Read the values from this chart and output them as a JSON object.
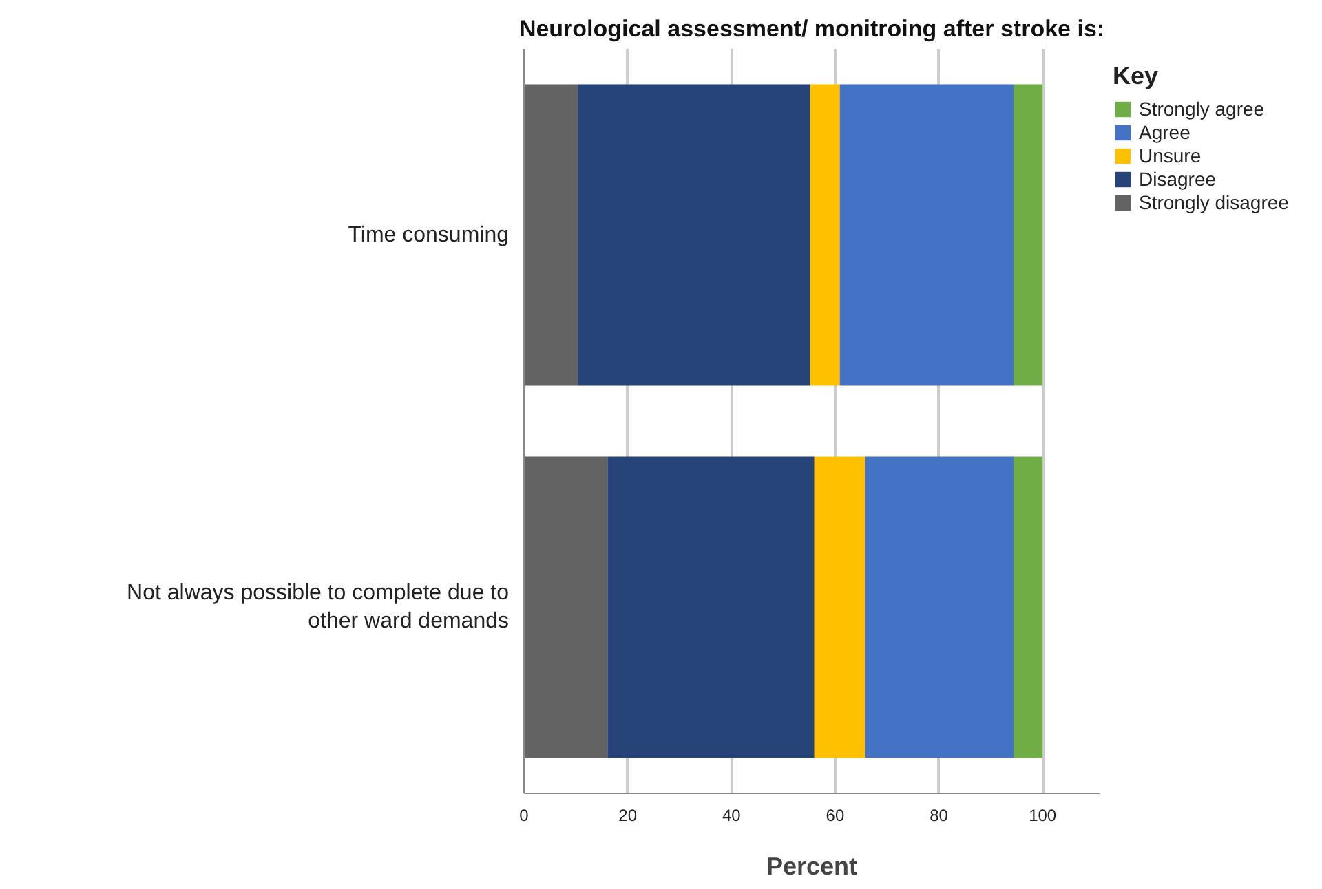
{
  "chart_data": {
    "type": "bar",
    "orientation": "horizontal",
    "stacked": true,
    "title": "Neurological assessment/ monitroing after stroke is:",
    "xlabel": "Percent",
    "legend_title": "Key",
    "legend": "right",
    "grid": "x",
    "categories": [
      "Time consuming",
      "Not always possible to complete due to other ward demands"
    ],
    "xlim": [
      0,
      111
    ],
    "xticks": [
      0,
      20,
      40,
      60,
      80,
      100
    ],
    "series": [
      {
        "name": "Strongly disagree",
        "color": "#636363",
        "values": [
          10.4,
          16.1
        ]
      },
      {
        "name": "Disagree",
        "color": "#264478",
        "values": [
          44.8,
          39.9
        ]
      },
      {
        "name": "Unsure",
        "color": "#ffc000",
        "values": [
          5.7,
          9.8
        ]
      },
      {
        "name": "Agree",
        "color": "#4472c4",
        "values": [
          33.5,
          28.6
        ]
      },
      {
        "name": "Strongly agree",
        "color": "#70ad47",
        "values": [
          5.6,
          5.6
        ]
      }
    ]
  }
}
